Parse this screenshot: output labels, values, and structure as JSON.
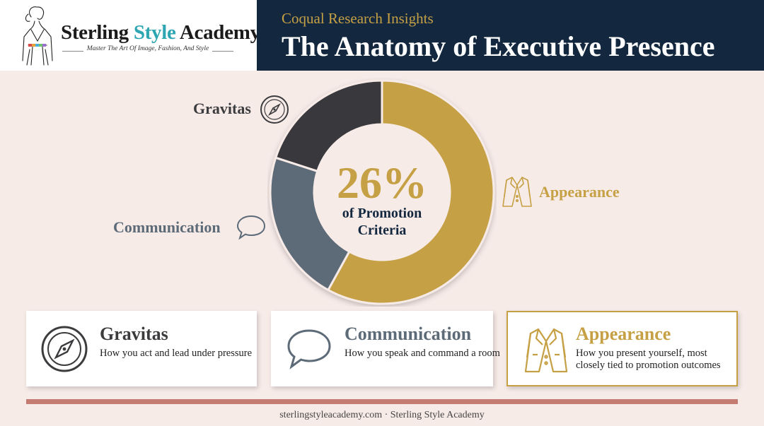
{
  "brand": {
    "name_part1": "Sterling ",
    "name_part2": "Style",
    "name_part3": " Academy",
    "tagline": "Master The Art Of Image, Fashion, And Style"
  },
  "header": {
    "kicker": "Coqual Research Insights",
    "title": "The Anatomy of Executive Presence"
  },
  "chart_data": {
    "type": "pie",
    "style": "donut",
    "center_value": "26%",
    "center_label": "of Promotion Criteria",
    "slices": [
      {
        "name": "Appearance",
        "value": 58,
        "color": "#c6a044"
      },
      {
        "name": "Communication",
        "value": 22,
        "color": "#5d6a77"
      },
      {
        "name": "Gravitas",
        "value": 20,
        "color": "#38393e"
      }
    ]
  },
  "callouts": {
    "gravitas": "Gravitas",
    "communication": "Communication",
    "appearance": "Appearance"
  },
  "cards": [
    {
      "title": "Gravitas",
      "desc": "How you act and lead under pressure",
      "icon": "compass-icon"
    },
    {
      "title": "Communication",
      "desc": "How you speak and command a room",
      "icon": "speech-bubble-icon"
    },
    {
      "title": "Appearance",
      "desc": "How you present yourself, most closely tied to promotion outcomes",
      "icon": "blazer-icon"
    }
  ],
  "colors": {
    "gold": "#c6a044",
    "navy": "#13283f",
    "slate": "#5d6a77",
    "charcoal": "#38393e",
    "divider": "#c47b72"
  },
  "footer": "sterlingstyleacademy.com · Sterling Style Academy"
}
